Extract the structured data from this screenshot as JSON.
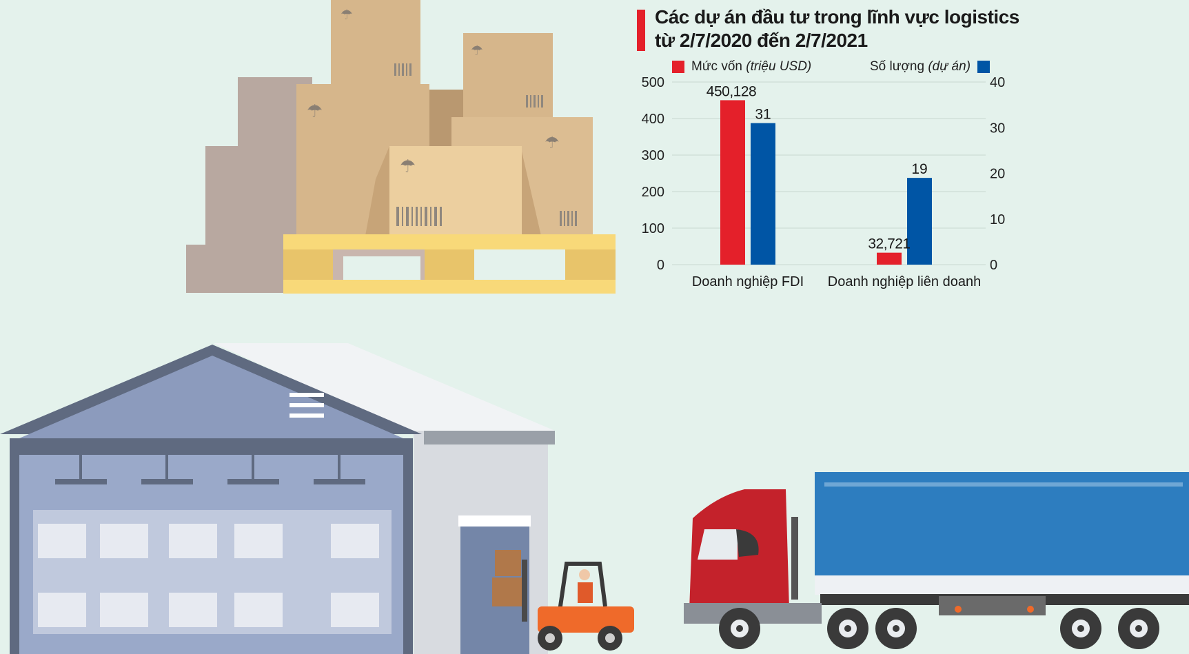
{
  "colors": {
    "capital": "#e4202a",
    "count": "#0055a5",
    "background": "#e4f2ec"
  },
  "title": {
    "line1": "Các dự án đầu tư trong lĩnh vực logistics",
    "line2": "từ 2/7/2020 đến 2/7/2021"
  },
  "legend": {
    "capital_label": "Mức vốn",
    "capital_unit": "(triệu USD)",
    "count_label": "Số lượng",
    "count_unit": "(dự án)"
  },
  "chart_data": {
    "type": "bar",
    "title": "Các dự án đầu tư trong lĩnh vực logistics từ 2/7/2020 đến 2/7/2021",
    "categories": [
      "Doanh nghiệp FDI",
      "Doanh nghiệp liên doanh"
    ],
    "series": [
      {
        "name": "Mức vốn (triệu USD)",
        "axis": "left",
        "color": "#e4202a",
        "values": [
          450.128,
          32.721
        ],
        "labels": [
          "450,128",
          "32,721"
        ]
      },
      {
        "name": "Số lượng (dự án)",
        "axis": "right",
        "color": "#0055a5",
        "values": [
          31,
          19
        ],
        "labels": [
          "31",
          "19"
        ]
      }
    ],
    "ylim_left": [
      0,
      500
    ],
    "yticks_left": [
      "0",
      "100",
      "200",
      "300",
      "400",
      "500"
    ],
    "ylim_right": [
      0,
      40
    ],
    "yticks_right": [
      "0",
      "10",
      "20",
      "30",
      "40"
    ],
    "grid": true,
    "legend_position": "top"
  }
}
